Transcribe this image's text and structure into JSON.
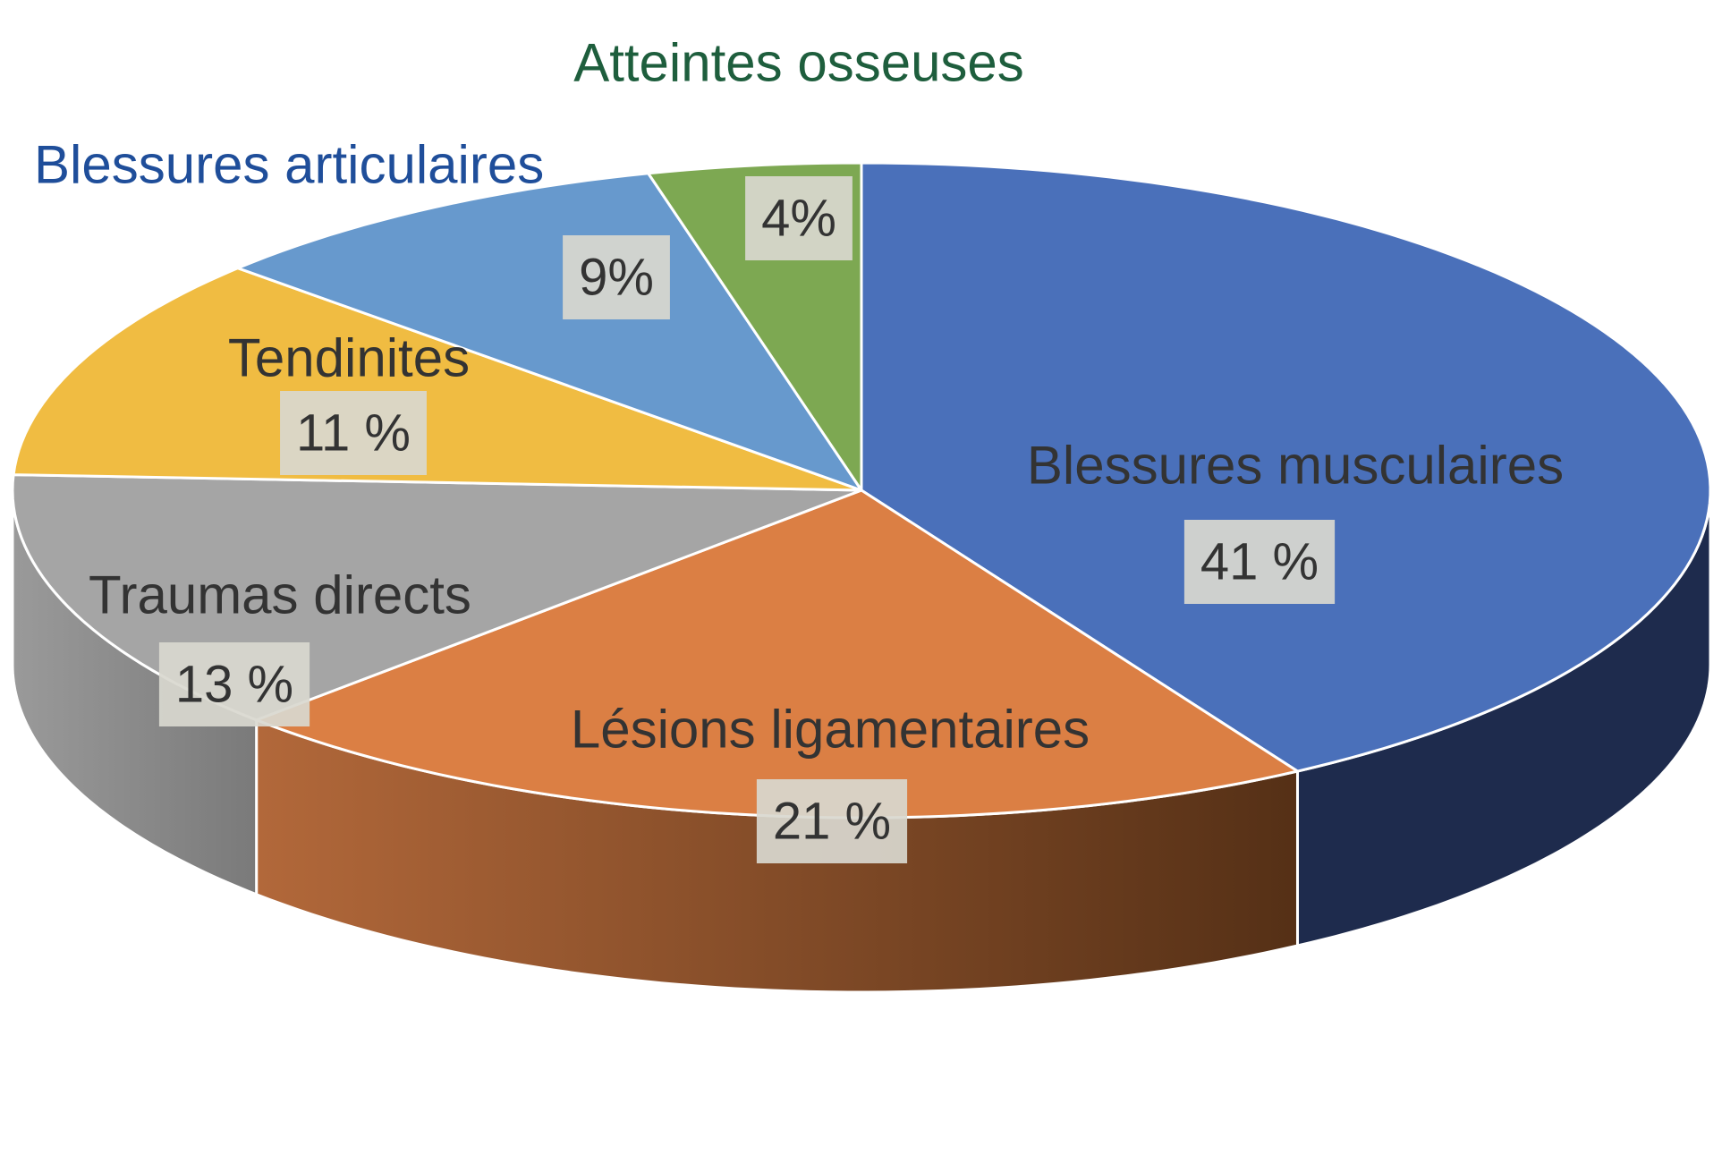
{
  "chart_data": {
    "type": "pie",
    "style": "3d",
    "start": "12 o'clock, clockwise",
    "slices": [
      {
        "label": "Blessures musculaires",
        "value": 41,
        "value_label": "41 %",
        "color": "#4a70ba",
        "side_color": "#1e2b4d",
        "label_placement": "inside"
      },
      {
        "label": "Lésions ligamentaires",
        "value": 21,
        "value_label": "21 %",
        "color": "#db7f44",
        "side_color": "#8a4d24",
        "label_placement": "inside"
      },
      {
        "label": "Traumas directs",
        "value": 13,
        "value_label": "13 %",
        "color": "#a5a5a5",
        "side_color": "#8a8a8a",
        "label_placement": "inside"
      },
      {
        "label": "Tendinites",
        "value": 11,
        "value_label": "11 %",
        "color": "#f0bc42",
        "side_color": "#b98d2c",
        "label_placement": "inside"
      },
      {
        "label": "Blessures articulaires",
        "value": 9,
        "value_label": "9%",
        "color": "#6799cd",
        "side_color": "#3e5f84",
        "label_placement": "outside",
        "label_color": "#1f4e9a"
      },
      {
        "label": "Atteintes osseuses",
        "value": 4,
        "value_label": "4%",
        "color": "#7da852",
        "side_color": "#4d6a31",
        "label_placement": "outside",
        "label_color": "#1e5e3d"
      }
    ]
  }
}
